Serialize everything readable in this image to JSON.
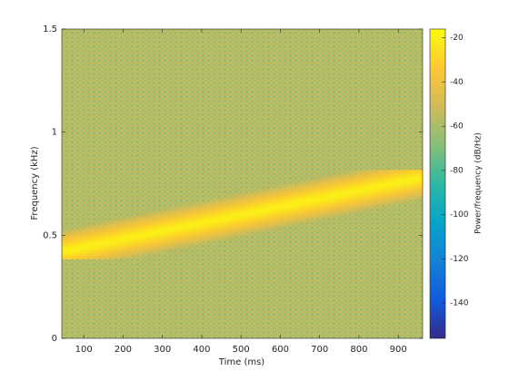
{
  "chart_data": {
    "type": "spectrogram",
    "xlabel": "Time (ms)",
    "ylabel": "Frequency (kHz)",
    "xlim": [
      44,
      962
    ],
    "xticks": [
      100,
      200,
      300,
      400,
      500,
      600,
      700,
      800,
      900
    ],
    "ylim": [
      0,
      1.5
    ],
    "yticks": [
      0,
      0.5,
      1,
      1.5
    ],
    "ridge": {
      "x": [
        44,
        962
      ],
      "y": [
        0.42,
        0.78
      ]
    },
    "peak_level": -18,
    "floor_level": -55,
    "colorbar": {
      "label": "Power/frequency (dB/Hz)",
      "lim": [
        -156,
        -16
      ],
      "ticks": [
        -140,
        -120,
        -100,
        -80,
        -60,
        -40,
        -20
      ],
      "colormap": [
        "#352a87",
        "#0f5cdd",
        "#1481d6",
        "#06a4ca",
        "#2eb7a4",
        "#87bf77",
        "#d1bb59",
        "#fec832",
        "#f9fb0e"
      ]
    }
  }
}
